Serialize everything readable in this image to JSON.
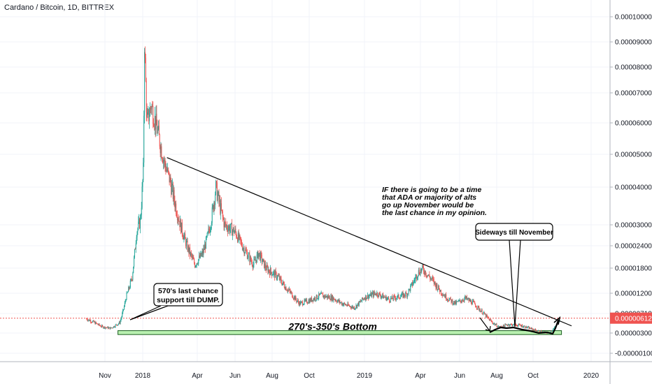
{
  "header": {
    "title": "Cardano / Bitcoin, 1D, BITTREX"
  },
  "chart_data": {
    "type": "candlestick",
    "title": "Cardano / Bitcoin, 1D, BITTREX",
    "y_axis": {
      "position": "right",
      "scale": "log",
      "tick_labels": [
        "0.00010000",
        "0.00009000",
        "0.00008000",
        "0.00007000",
        "0.00006000",
        "0.00005000",
        "0.00004000",
        "0.00003000",
        "0.00002400",
        "0.00001800",
        "0.00001200",
        "0.00000710",
        "0.00000300",
        "-0.00000100"
      ],
      "tick_values": [
        0.0001,
        9e-05,
        8e-05,
        7e-05,
        6e-05,
        5e-05,
        4e-05,
        3e-05,
        2.4e-05,
        1.8e-05,
        1.2e-05,
        7.1e-06,
        3e-06,
        -1e-06
      ]
    },
    "x_axis": {
      "tick_labels": [
        "Nov",
        "2018",
        "Apr",
        "Jun",
        "Aug",
        "Oct",
        "2019",
        "Apr",
        "Jun",
        "Aug",
        "Oct",
        "2020"
      ],
      "tick_dates": [
        "2017-11-01",
        "2018-01-01",
        "2018-04-01",
        "2018-06-01",
        "2018-08-01",
        "2018-10-01",
        "2019-01-01",
        "2019-04-01",
        "2019-06-01",
        "2019-08-01",
        "2019-10-01",
        "2020-01-01"
      ]
    },
    "last_price": {
      "label": "0.00000612",
      "value": 6.12e-06,
      "color": "#ef5350"
    },
    "colors": {
      "up": "#26a69a",
      "down": "#ef5350",
      "zone_fill": "#b9f0b0",
      "zone_border": "#1b5e20",
      "lines": "#000000",
      "grid": "#f0f3fa"
    },
    "price_path": [
      [
        "2017-10-02",
        6e-06
      ],
      [
        "2017-10-15",
        5.2e-06
      ],
      [
        "2017-10-28",
        4.3e-06
      ],
      [
        "2017-11-10",
        4e-06
      ],
      [
        "2017-11-25",
        5.2e-06
      ],
      [
        "2017-12-05",
        1.1e-05
      ],
      [
        "2017-12-15",
        1.6e-05
      ],
      [
        "2017-12-22",
        2.8e-05
      ],
      [
        "2017-12-28",
        3.1e-05
      ],
      [
        "2018-01-02",
        4.5e-05
      ],
      [
        "2018-01-04",
        9e-05
      ],
      [
        "2018-01-08",
        6e-05
      ],
      [
        "2018-01-15",
        6.6e-05
      ],
      [
        "2018-01-25",
        5.8e-05
      ],
      [
        "2018-02-05",
        4.8e-05
      ],
      [
        "2018-02-15",
        4.2e-05
      ],
      [
        "2018-03-01",
        3.2e-05
      ],
      [
        "2018-03-15",
        2.4e-05
      ],
      [
        "2018-03-28",
        1.9e-05
      ],
      [
        "2018-04-10",
        2.2e-05
      ],
      [
        "2018-04-22",
        3e-05
      ],
      [
        "2018-05-01",
        4e-05
      ],
      [
        "2018-05-15",
        3e-05
      ],
      [
        "2018-06-01",
        2.8e-05
      ],
      [
        "2018-06-20",
        2.2e-05
      ],
      [
        "2018-07-01",
        1.9e-05
      ],
      [
        "2018-07-10",
        2.2e-05
      ],
      [
        "2018-07-22",
        1.8e-05
      ],
      [
        "2018-08-10",
        1.6e-05
      ],
      [
        "2018-09-01",
        1.2e-05
      ],
      [
        "2018-09-15",
        9.5e-06
      ],
      [
        "2018-10-01",
        1.02e-05
      ],
      [
        "2018-10-20",
        1.15e-05
      ],
      [
        "2018-11-10",
        1.08e-05
      ],
      [
        "2018-11-25",
        9.5e-06
      ],
      [
        "2018-12-15",
        8.5e-06
      ],
      [
        "2019-01-01",
        1.1e-05
      ],
      [
        "2019-01-20",
        1.2e-05
      ],
      [
        "2019-02-10",
        1.05e-05
      ],
      [
        "2019-03-10",
        1.18e-05
      ],
      [
        "2019-03-28",
        1.7e-05
      ],
      [
        "2019-04-05",
        1.78e-05
      ],
      [
        "2019-04-20",
        1.5e-05
      ],
      [
        "2019-05-10",
        1.12e-05
      ],
      [
        "2019-05-25",
        9.5e-06
      ],
      [
        "2019-06-10",
        1.08e-05
      ],
      [
        "2019-06-25",
        9.5e-06
      ],
      [
        "2019-07-10",
        7.2e-06
      ],
      [
        "2019-07-25",
        5.2e-06
      ],
      [
        "2019-08-05",
        4.2e-06
      ],
      [
        "2019-08-20",
        4.8e-06
      ],
      [
        "2019-09-10",
        4.6e-06
      ],
      [
        "2019-09-25",
        4e-06
      ],
      [
        "2019-10-10",
        3.4e-06
      ],
      [
        "2019-10-25",
        3e-06
      ],
      [
        "2019-11-05",
        4.2e-06
      ],
      [
        "2019-11-12",
        6.1e-06
      ]
    ],
    "zone": {
      "label": "270's-350's Bottom",
      "x_from": "2017-11-22",
      "x_to": "2019-11-15",
      "y_low": 2.7e-06,
      "y_high": 3.5e-06
    },
    "trendline": {
      "x_from": "2018-02-10",
      "y_from": 4.9e-05,
      "x_to": "2019-12-01",
      "y_to": 4.5e-06
    },
    "annotations": [
      {
        "id": "support",
        "lines": [
          "570's last chance",
          "support till DUMP."
        ],
        "style": "callout"
      },
      {
        "id": "sideways",
        "lines": [
          "Sideways till November"
        ],
        "style": "callout"
      },
      {
        "id": "note",
        "lines": [
          "IF there is going to be a time",
          "that ADA or majority of alts",
          "go up November would be",
          "the last chance in my opinion."
        ],
        "style": "text"
      }
    ],
    "grid": true,
    "legend": "none"
  }
}
